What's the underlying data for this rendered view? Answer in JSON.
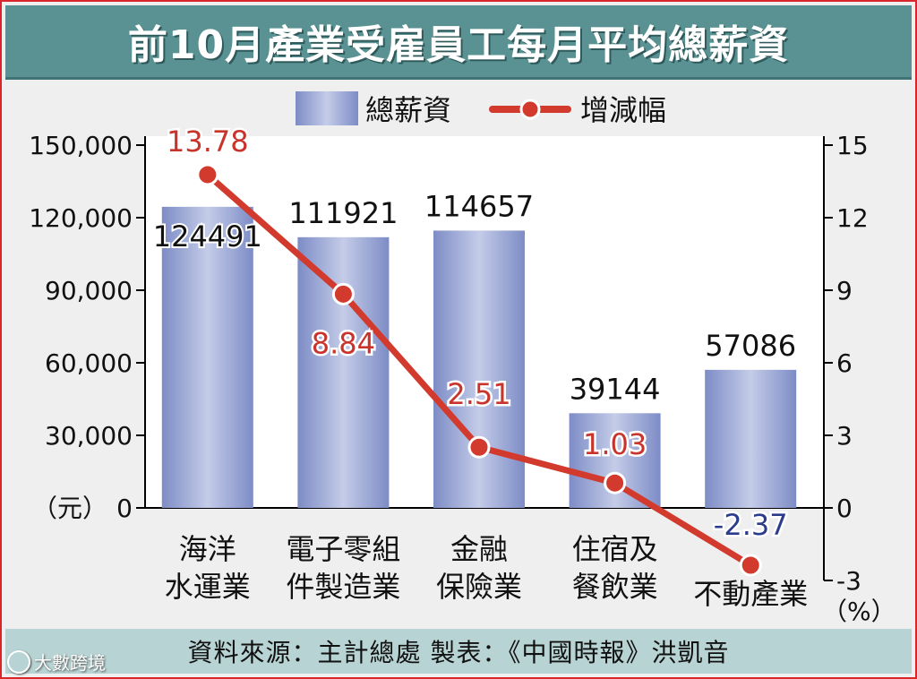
{
  "title": "前10月產業受雇員工每月平均總薪資",
  "source": "資料來源：主計總處 製表：《中國時報》洪凱音",
  "watermark": "大數跨境",
  "colors": {
    "bar_light": "#c4cce8",
    "bar_dark": "#7d8cc6",
    "line": "#d23a2e",
    "label_positive": "#c8342c",
    "label_negative": "#2c3c8c",
    "title_bg": "#5a9293",
    "source_bg": "#b8d3d3",
    "frame": "#d9262b"
  },
  "chart_data": {
    "type": "bar+line",
    "title": "前10月產業受雇員工每月平均總薪資",
    "categories": [
      [
        "海洋",
        "水運業"
      ],
      [
        "電子零組",
        "件製造業"
      ],
      [
        "金融",
        "保險業"
      ],
      [
        "住宿及",
        "餐飲業"
      ],
      [
        "不動產業"
      ]
    ],
    "series": [
      {
        "name": "總薪資",
        "type": "bar",
        "axis": "left",
        "values": [
          124491,
          111921,
          114657,
          39144,
          57086
        ],
        "labels": [
          "124491",
          "111921",
          "114657",
          "39144",
          "57086"
        ]
      },
      {
        "name": "增減幅",
        "type": "line",
        "axis": "right",
        "values": [
          13.78,
          8.84,
          2.51,
          1.03,
          -2.37
        ],
        "labels": [
          "13.78",
          "8.84",
          "2.51",
          "1.03",
          "-2.37"
        ]
      }
    ],
    "y_left": {
      "unit": "（元）",
      "range": [
        0,
        150000
      ],
      "ticks": [
        "0",
        "30,000",
        "60,000",
        "90,000",
        "120,000",
        "150,000"
      ]
    },
    "y_right": {
      "unit": "（%）",
      "range": [
        -3,
        15
      ],
      "ticks": [
        "-3",
        "0",
        "3",
        "6",
        "9",
        "12",
        "15"
      ]
    },
    "legend": {
      "placement": "top-center"
    },
    "grid": false
  }
}
